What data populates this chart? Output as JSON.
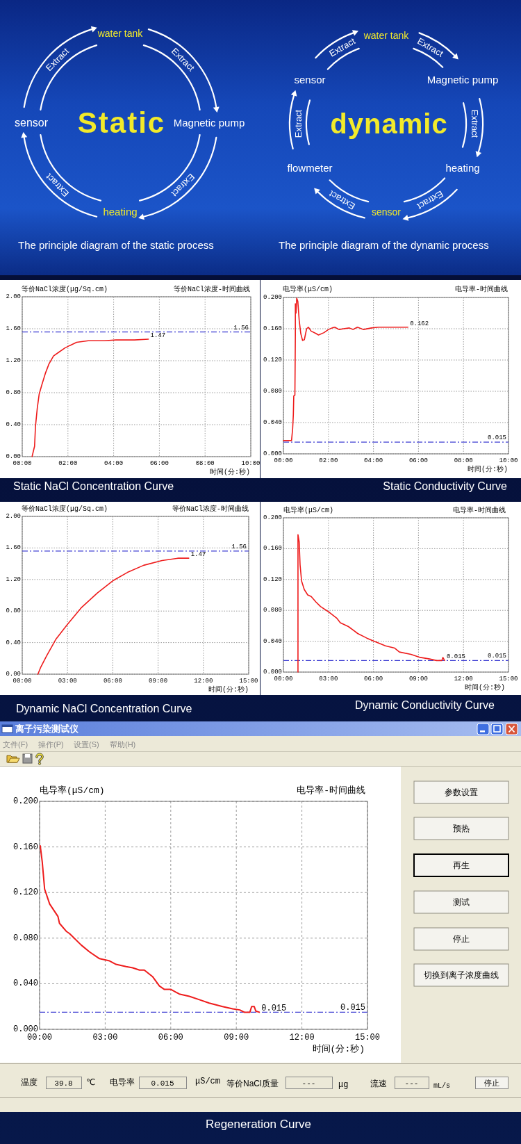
{
  "chart_data": [
    {
      "type": "other",
      "title": "The principle diagram of the static process",
      "annotations": [
        "water tank",
        "Extract",
        "Extract",
        "sensor",
        "Static",
        "Magnetic pump",
        "Extract",
        "Extract",
        "heating"
      ]
    },
    {
      "type": "other",
      "title": "The principle diagram of the dynamic process",
      "annotations": [
        "water tank",
        "Extract",
        "Extract",
        "sensor",
        "Magnetic pump",
        "dynamic",
        "Extract",
        "Extract",
        "flowmeter",
        "heating",
        "Extract",
        "sensor",
        "Extract"
      ]
    },
    {
      "type": "line",
      "title": "等价NaCl浓度-时间曲线",
      "ylabel": "等价NaCl浓度(μg/Sq.cm)",
      "xlabel": "时间(分:秒)",
      "x": [
        0.43,
        0.54,
        0.58,
        0.66,
        0.74,
        0.86,
        1.01,
        1.17,
        1.37,
        1.57,
        1.87,
        2.08,
        2.38,
        2.89,
        3.6,
        4.1,
        4.91,
        5.52
      ],
      "series": [
        {
          "color": "#ee1c1c",
          "values": [
            0,
            0.13,
            0.38,
            0.61,
            0.78,
            0.9,
            1.04,
            1.16,
            1.26,
            1.3,
            1.36,
            1.39,
            1.43,
            1.45,
            1.45,
            1.46,
            1.46,
            1.47
          ]
        }
      ],
      "xlim": [
        0,
        10
      ],
      "ylim": [
        0,
        2
      ],
      "xticks": [
        {
          "value": 0,
          "label": "00:00"
        },
        {
          "value": 2,
          "label": "02:00"
        },
        {
          "value": 4,
          "label": "04:00"
        },
        {
          "value": 6,
          "label": "06:00"
        },
        {
          "value": 8,
          "label": "08:00"
        },
        {
          "value": 10,
          "label": "10:00"
        }
      ],
      "yticks": [
        {
          "value": 0,
          "label": "0.00"
        },
        {
          "value": 0.4,
          "label": "0.40"
        },
        {
          "value": 0.8,
          "label": "0.80"
        },
        {
          "value": 1.2,
          "label": "1.20"
        },
        {
          "value": 1.6,
          "label": "1.60"
        },
        {
          "value": 2,
          "label": "2.00"
        }
      ],
      "grid": true,
      "ref_lines": [
        {
          "axis": "y",
          "value": 1.56,
          "label": "1.56",
          "color": "#3c3cd2",
          "line_style": "dashdot"
        }
      ],
      "annotations": [
        "Static NaCl Concentration Curve",
        {
          "text": "1.47",
          "x": 5.52,
          "y": 1.47
        }
      ]
    },
    {
      "type": "line",
      "title": "电导率-时间曲线",
      "ylabel": "电导率(μS/cm)",
      "xlabel": "时间(分:秒)",
      "x": [
        0,
        0.36,
        0.41,
        0.44,
        0.46,
        0.51,
        0.53,
        0.53,
        0.56,
        0.59,
        0.64,
        0.7,
        0.77,
        0.85,
        0.93,
        1.03,
        1.11,
        1.23,
        1.44,
        1.56,
        1.8,
        2.0,
        2.16,
        2.28,
        2.47,
        2.67,
        2.93,
        3.09,
        3.29,
        3.55,
        3.91,
        4.22,
        4.68,
        5.53
      ],
      "series": [
        {
          "color": "#ee1c1c",
          "values": [
            0.017,
            0.017,
            0.032,
            0.05,
            0.074,
            0.075,
            0.151,
            0.192,
            0.18,
            0.199,
            0.195,
            0.171,
            0.154,
            0.145,
            0.146,
            0.16,
            0.162,
            0.157,
            0.154,
            0.152,
            0.155,
            0.159,
            0.161,
            0.162,
            0.159,
            0.16,
            0.161,
            0.159,
            0.162,
            0.159,
            0.161,
            0.162,
            0.162,
            0.162
          ]
        }
      ],
      "xlim": [
        0,
        10
      ],
      "ylim": [
        0,
        0.2
      ],
      "xticks": [
        {
          "value": 0,
          "label": "00:00"
        },
        {
          "value": 2,
          "label": "02:00"
        },
        {
          "value": 4,
          "label": "04:00"
        },
        {
          "value": 6,
          "label": "06:00"
        },
        {
          "value": 8,
          "label": "08:00"
        },
        {
          "value": 10,
          "label": "10:00"
        }
      ],
      "yticks": [
        {
          "value": 0,
          "label": "0.000"
        },
        {
          "value": 0.04,
          "label": "0.040"
        },
        {
          "value": 0.08,
          "label": "0.080"
        },
        {
          "value": 0.12,
          "label": "0.120"
        },
        {
          "value": 0.16,
          "label": "0.160"
        },
        {
          "value": 0.2,
          "label": "0.200"
        }
      ],
      "grid": true,
      "ref_lines": [
        {
          "axis": "y",
          "value": 0.015,
          "label": "0.015",
          "color": "#3c3cd2",
          "line_style": "dashdot"
        }
      ],
      "annotations": [
        "Static Conductivity Curve",
        {
          "text": "0.162",
          "x": 5.53,
          "y": 0.162
        }
      ]
    },
    {
      "type": "line",
      "title": "等价NaCl浓度-时间曲线",
      "ylabel": "等价NaCl浓度(μg/Sq.cm)",
      "xlabel": "时间(分:秒)",
      "x": [
        1.04,
        1.23,
        1.61,
        2.22,
        2.99,
        3.9,
        4.98,
        6.05,
        6.97,
        8.04,
        9.26,
        10.34,
        11.03
      ],
      "series": [
        {
          "color": "#ee1c1c",
          "values": [
            0,
            0.09,
            0.23,
            0.44,
            0.63,
            0.84,
            1.03,
            1.19,
            1.29,
            1.38,
            1.44,
            1.47,
            1.47
          ]
        }
      ],
      "xlim": [
        0,
        15
      ],
      "ylim": [
        0,
        2
      ],
      "xticks": [
        {
          "value": 0,
          "label": "00:00"
        },
        {
          "value": 3,
          "label": "03:00"
        },
        {
          "value": 6,
          "label": "06:00"
        },
        {
          "value": 9,
          "label": "09:00"
        },
        {
          "value": 12,
          "label": "12:00"
        },
        {
          "value": 15,
          "label": "15:00"
        }
      ],
      "yticks": [
        {
          "value": 0,
          "label": "0.00"
        },
        {
          "value": 0.4,
          "label": "0.40"
        },
        {
          "value": 0.8,
          "label": "0.80"
        },
        {
          "value": 1.2,
          "label": "1.20"
        },
        {
          "value": 1.6,
          "label": "1.60"
        },
        {
          "value": 2,
          "label": "2.00"
        }
      ],
      "grid": true,
      "ref_lines": [
        {
          "axis": "y",
          "value": 1.56,
          "label": "1.56",
          "color": "#3c3cd2",
          "line_style": "dashdot"
        }
      ],
      "annotations": [
        "Dynamic NaCl Concentration Curve",
        {
          "text": "1.47",
          "x": 11.03,
          "y": 1.47
        }
      ]
    },
    {
      "type": "line",
      "title": "电导率-时间曲线",
      "ylabel": "电导率(μS/cm)",
      "xlabel": "时间(分:秒)",
      "x": [
        0.97,
        0.97,
        1.05,
        1.11,
        1.21,
        1.39,
        1.62,
        1.85,
        2.16,
        2.47,
        3.09,
        3.55,
        3.79,
        4.33,
        4.95,
        5.56,
        6.03,
        6.8,
        7.42,
        7.73,
        8.5,
        9.12,
        9.74,
        10.2,
        10.56,
        10.63,
        10.74
      ],
      "series": [
        {
          "color": "#ee1c1c",
          "values": [
            0,
            0.178,
            0.169,
            0.139,
            0.118,
            0.107,
            0.1,
            0.098,
            0.091,
            0.085,
            0.077,
            0.07,
            0.064,
            0.059,
            0.05,
            0.044,
            0.04,
            0.034,
            0.031,
            0.026,
            0.023,
            0.019,
            0.017,
            0.015,
            0.015,
            0.019,
            0.015
          ]
        }
      ],
      "xlim": [
        0,
        15
      ],
      "ylim": [
        0,
        0.2
      ],
      "xticks": [
        {
          "value": 0,
          "label": "00:00"
        },
        {
          "value": 3,
          "label": "03:00"
        },
        {
          "value": 6,
          "label": "06:00"
        },
        {
          "value": 9,
          "label": "09:00"
        },
        {
          "value": 12,
          "label": "12:00"
        },
        {
          "value": 15,
          "label": "15:00"
        }
      ],
      "yticks": [
        {
          "value": 0,
          "label": "0.000"
        },
        {
          "value": 0.04,
          "label": "0.040"
        },
        {
          "value": 0.08,
          "label": "0.080"
        },
        {
          "value": 0.12,
          "label": "0.120"
        },
        {
          "value": 0.16,
          "label": "0.160"
        },
        {
          "value": 0.2,
          "label": "0.200"
        }
      ],
      "grid": true,
      "ref_lines": [
        {
          "axis": "y",
          "value": 0.015,
          "label": "0.015",
          "color": "#3c3cd2",
          "line_style": "dashdot"
        }
      ],
      "annotations": [
        "Dynamic Conductivity Curve",
        {
          "text": "0.015",
          "x": 10.74,
          "y": 0.015
        }
      ]
    },
    {
      "type": "other",
      "title": "离子污染测试仪",
      "annotations": [
        "文件(F)",
        "操作(P)",
        "设置(S)",
        "帮助(H)",
        "参数设置",
        "预热",
        "再生",
        "测试",
        "停止",
        "切换到离子浓度曲线",
        "温度",
        "39.8",
        "℃",
        "电导率",
        "0.015",
        "μS/cm",
        "等价NaCl质量",
        "---",
        "μg",
        "流速",
        "---",
        "mL/s",
        "停止"
      ]
    },
    {
      "type": "line",
      "title": "电导率-时间曲线",
      "ylabel": "电导率(μS/cm)",
      "xlabel": "时间(分:秒)",
      "x": [
        0.03,
        0.12,
        0.23,
        0.46,
        0.84,
        0.91,
        1.22,
        1.37,
        1.9,
        2.28,
        2.74,
        3.2,
        3.5,
        3.96,
        4.26,
        4.57,
        4.79,
        5.18,
        5.48,
        5.71,
        6.01,
        6.39,
        6.85,
        7.31,
        7.76,
        8.37,
        8.83,
        9.16,
        9.36,
        9.62,
        9.7,
        9.82,
        9.89,
        10.05
      ],
      "series": [
        {
          "color": "#ee1c1c",
          "values": [
            0.161,
            0.147,
            0.123,
            0.11,
            0.099,
            0.093,
            0.086,
            0.084,
            0.074,
            0.068,
            0.062,
            0.06,
            0.057,
            0.055,
            0.054,
            0.052,
            0.052,
            0.046,
            0.038,
            0.035,
            0.035,
            0.031,
            0.029,
            0.026,
            0.023,
            0.02,
            0.018,
            0.017,
            0.015,
            0.015,
            0.02,
            0.02,
            0.016,
            0.015
          ]
        }
      ],
      "xlim": [
        0,
        15
      ],
      "ylim": [
        0,
        0.2
      ],
      "xticks": [
        {
          "value": 0,
          "label": "00:00"
        },
        {
          "value": 3,
          "label": "03:00"
        },
        {
          "value": 6,
          "label": "06:00"
        },
        {
          "value": 9,
          "label": "09:00"
        },
        {
          "value": 12,
          "label": "12:00"
        },
        {
          "value": 15,
          "label": "15:00"
        }
      ],
      "yticks": [
        {
          "value": 0,
          "label": "0.000"
        },
        {
          "value": 0.04,
          "label": "0.040"
        },
        {
          "value": 0.08,
          "label": "0.080"
        },
        {
          "value": 0.12,
          "label": "0.120"
        },
        {
          "value": 0.16,
          "label": "0.160"
        },
        {
          "value": 0.2,
          "label": "0.200"
        }
      ],
      "grid": true,
      "ref_lines": [
        {
          "axis": "y",
          "value": 0.015,
          "label": "0.015",
          "color": "#3c3cd2",
          "line_style": "dashdot"
        }
      ],
      "annotations": [
        {
          "text": "0.015",
          "x": 10.05,
          "y": 0.015
        },
        "Regeneration Curve"
      ]
    }
  ]
}
